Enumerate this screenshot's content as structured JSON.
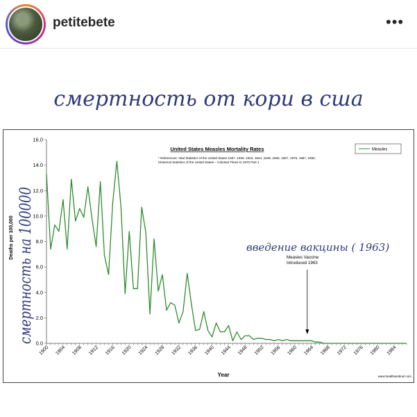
{
  "header": {
    "username": "petitebete",
    "more_icon": "more-horizontal-icon"
  },
  "post": {
    "caption_title": "смертность от кори в сша",
    "overlay_left_text": "смертность на 100000",
    "overlay_note": "введение вакцины ( 1963)"
  },
  "colors": {
    "line": "#2e8b2e",
    "handwriting": "#2f3a77",
    "text": "#262626"
  },
  "chart_data": {
    "type": "line",
    "title": "United States Measles Mortality Rates",
    "references": "* References: Vital Statistics of the United States 1937, 1938, 1943, 1944, 1949, 1960, 1967, 1976, 1987, 1992; Historical Statistics of the United States – Colonial Times to 1970 Part 1",
    "xlabel": "Year",
    "ylabel": "Deaths per 100,000",
    "ylim": [
      0,
      16
    ],
    "xlim": [
      1900,
      1987
    ],
    "yticks": [
      "0.0",
      "2.0",
      "4.0",
      "6.0",
      "8.0",
      "10.0",
      "12.0",
      "14.0",
      "16.0"
    ],
    "xticks": [
      "1900",
      "1904",
      "1908",
      "1912",
      "1916",
      "1920",
      "1924",
      "1928",
      "1932",
      "1936",
      "1940",
      "1944",
      "1948",
      "1952",
      "1956",
      "1960",
      "1964",
      "1968",
      "1972",
      "1976",
      "1980",
      "1984"
    ],
    "legend": "Measles",
    "legend_position": "top-right",
    "annotation": "Measles Vaccine\nIntroduced 1963",
    "annotation_line1": "Measles Vaccine",
    "annotation_line2": "Introduced 1963",
    "source": "www.healthsentinel.com",
    "series": [
      {
        "name": "Measles",
        "x": [
          1900,
          1901,
          1902,
          1903,
          1904,
          1905,
          1906,
          1907,
          1908,
          1909,
          1910,
          1911,
          1912,
          1913,
          1914,
          1915,
          1916,
          1917,
          1918,
          1919,
          1920,
          1921,
          1922,
          1923,
          1924,
          1925,
          1926,
          1927,
          1928,
          1929,
          1930,
          1931,
          1932,
          1933,
          1934,
          1935,
          1936,
          1937,
          1938,
          1939,
          1940,
          1941,
          1942,
          1943,
          1944,
          1945,
          1946,
          1947,
          1948,
          1949,
          1950,
          1951,
          1952,
          1953,
          1954,
          1955,
          1956,
          1957,
          1958,
          1959,
          1960,
          1961,
          1962,
          1963,
          1964,
          1965,
          1966,
          1967,
          1968,
          1969,
          1970,
          1971,
          1972,
          1973,
          1974,
          1975,
          1976,
          1977,
          1978,
          1979,
          1980,
          1981,
          1982,
          1983,
          1984,
          1985,
          1986,
          1987
        ],
        "values": [
          13.3,
          7.4,
          9.3,
          8.8,
          11.3,
          7.4,
          12.9,
          9.6,
          10.6,
          9.9,
          12.3,
          9.8,
          7.6,
          12.7,
          6.9,
          5.4,
          11.0,
          14.3,
          10.7,
          3.9,
          8.8,
          4.3,
          4.3,
          10.7,
          8.7,
          2.3,
          8.2,
          4.1,
          5.4,
          2.6,
          3.2,
          3.0,
          1.6,
          2.5,
          5.5,
          3.1,
          1.0,
          1.1,
          2.5,
          1.0,
          0.5,
          1.6,
          0.9,
          0.9,
          1.4,
          0.2,
          0.9,
          0.3,
          0.6,
          0.6,
          0.3,
          0.4,
          0.4,
          0.3,
          0.3,
          0.2,
          0.3,
          0.2,
          0.3,
          0.2,
          0.2,
          0.2,
          0.2,
          0.2,
          0.2,
          0.1,
          0.1,
          0.0,
          0.0,
          0.0,
          0.0,
          0.0,
          0.0,
          0.0,
          0.0,
          0.0,
          0.0,
          0.0,
          0.0,
          0.0,
          0.0,
          0.0,
          0.0,
          0.0,
          0.0,
          0.0,
          0.0,
          0.0
        ]
      }
    ]
  }
}
